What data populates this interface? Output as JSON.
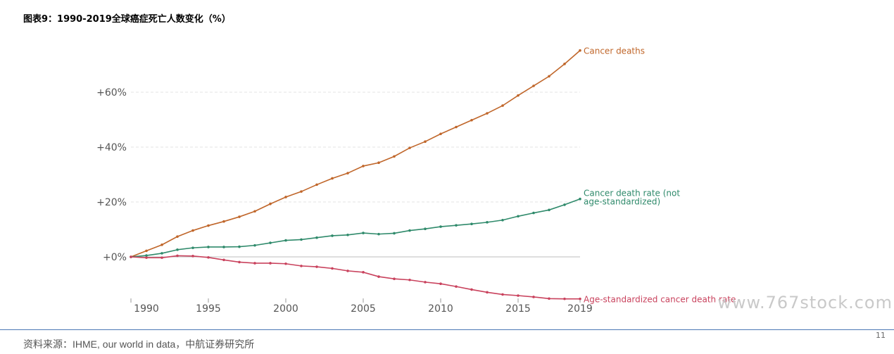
{
  "header": {
    "title": "图表9：1990-2019全球癌症死亡人数变化（%）"
  },
  "chart_data": {
    "type": "line",
    "x": [
      1990,
      1991,
      1992,
      1993,
      1994,
      1995,
      1996,
      1997,
      1998,
      1999,
      2000,
      2001,
      2002,
      2003,
      2004,
      2005,
      2006,
      2007,
      2008,
      2009,
      2010,
      2011,
      2012,
      2013,
      2014,
      2015,
      2016,
      2017,
      2018,
      2019
    ],
    "x_ticks": [
      "1990",
      "1995",
      "2000",
      "2005",
      "2010",
      "2015",
      "2019"
    ],
    "y_ticks": [
      "+0%",
      "+20%",
      "+40%",
      "+60%"
    ],
    "xlim": [
      1990,
      2019
    ],
    "ylim": [
      -17,
      76
    ],
    "grid": "horizontal dashed",
    "series": [
      {
        "name": "Cancer deaths",
        "label_lines": [
          "Cancer deaths"
        ],
        "color": "#c0662a",
        "values": [
          0,
          2.2,
          4.4,
          7.4,
          9.6,
          11.4,
          12.9,
          14.6,
          16.6,
          19.3,
          21.8,
          23.8,
          26.3,
          28.6,
          30.5,
          33.1,
          34.3,
          36.6,
          39.7,
          42.0,
          44.8,
          47.3,
          49.8,
          52.3,
          55.1,
          58.8,
          62.3,
          65.8,
          70.3,
          75.2
        ]
      },
      {
        "name": "Cancer death rate (not age-standardized)",
        "label_lines": [
          "Cancer death rate (not",
          "age-standardized)"
        ],
        "color": "#2f8a6b",
        "values": [
          0,
          0.5,
          1.3,
          2.6,
          3.3,
          3.6,
          3.6,
          3.7,
          4.2,
          5.1,
          6.0,
          6.3,
          7.0,
          7.7,
          8.0,
          8.7,
          8.3,
          8.6,
          9.6,
          10.2,
          11.0,
          11.5,
          12.0,
          12.6,
          13.4,
          14.8,
          16.0,
          17.1,
          19.0,
          21.1
        ]
      },
      {
        "name": "Age-standardized cancer death rate",
        "label_lines": [
          "Age-standardized cancer death rate"
        ],
        "color": "#c9425d",
        "values": [
          0,
          -0.3,
          -0.3,
          0.4,
          0.3,
          -0.2,
          -1.1,
          -1.9,
          -2.3,
          -2.3,
          -2.5,
          -3.3,
          -3.6,
          -4.2,
          -5.1,
          -5.6,
          -7.2,
          -8.0,
          -8.4,
          -9.2,
          -9.8,
          -10.8,
          -11.9,
          -12.9,
          -13.7,
          -14.1,
          -14.6,
          -15.2,
          -15.3,
          -15.3
        ]
      }
    ]
  },
  "watermark": "www.767stock.com",
  "footer": {
    "source": "资料来源：IHME, our world in data，中航证券研究所",
    "page": "11"
  }
}
